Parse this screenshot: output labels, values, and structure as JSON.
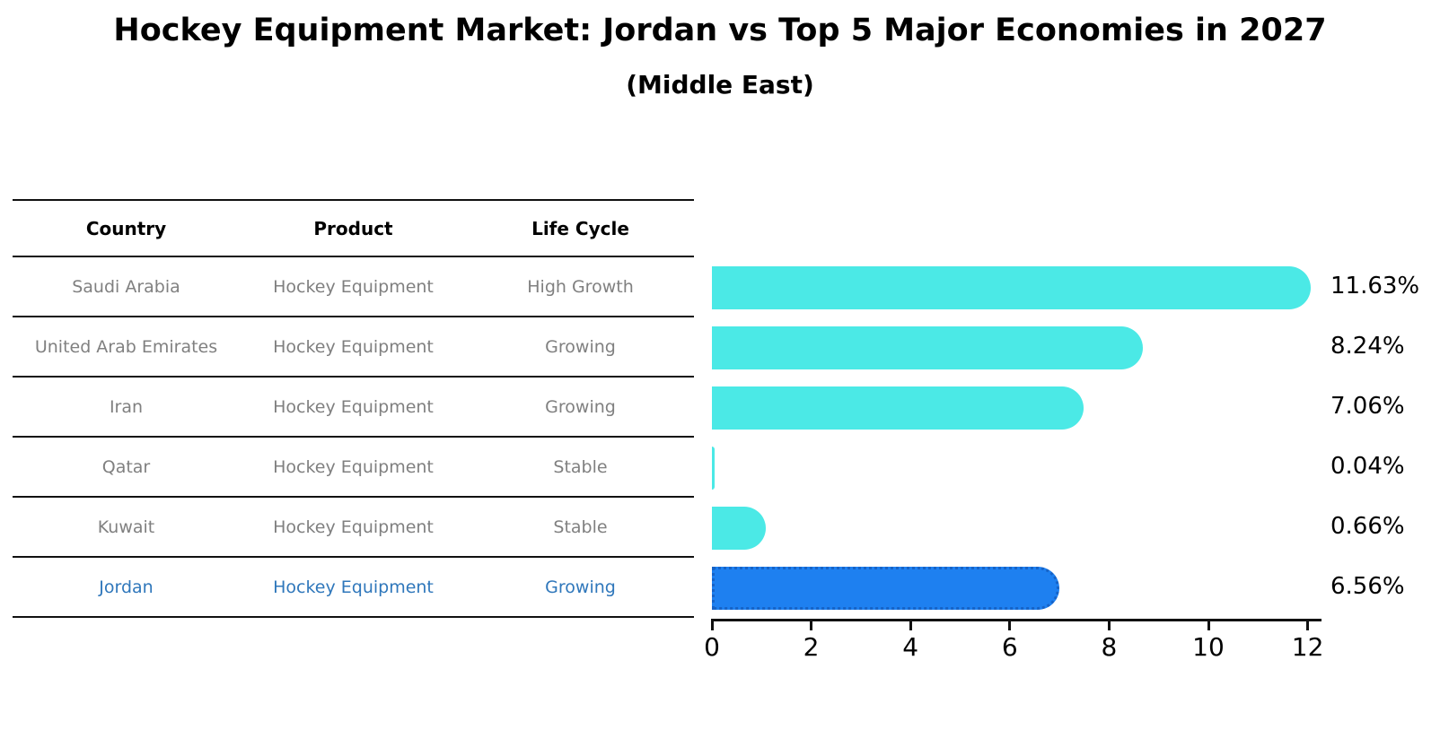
{
  "title": "Hockey Equipment Market: Jordan vs Top 5 Major Economies in 2027",
  "subtitle": "(Middle East)",
  "table": {
    "headers": [
      "Country",
      "Product",
      "Life Cycle"
    ],
    "rows": [
      {
        "country": "Saudi Arabia",
        "product": "Hockey Equipment",
        "life_cycle": "High Growth",
        "highlight": false
      },
      {
        "country": "United Arab Emirates",
        "product": "Hockey Equipment",
        "life_cycle": "Growing",
        "highlight": false
      },
      {
        "country": "Iran",
        "product": "Hockey Equipment",
        "life_cycle": "Growing",
        "highlight": false
      },
      {
        "country": "Qatar",
        "product": "Hockey Equipment",
        "life_cycle": "Stable",
        "highlight": false
      },
      {
        "country": "Kuwait",
        "product": "Hockey Equipment",
        "life_cycle": "Stable",
        "highlight": false
      },
      {
        "country": "Jordan",
        "product": "Hockey Equipment",
        "life_cycle": "Growing",
        "highlight": true
      }
    ]
  },
  "chart_data": {
    "type": "bar",
    "orientation": "horizontal",
    "title": "Hockey Equipment Market: Jordan vs Top 5 Major Economies in 2027 (Middle East)",
    "categories": [
      "Saudi Arabia",
      "United Arab Emirates",
      "Iran",
      "Qatar",
      "Kuwait",
      "Jordan"
    ],
    "values": [
      11.63,
      8.24,
      7.06,
      0.04,
      0.66,
      6.56
    ],
    "value_labels": [
      "11.63%",
      "8.24%",
      "7.06%",
      "0.04%",
      "0.66%",
      "6.56%"
    ],
    "x_ticks": [
      0,
      2,
      4,
      6,
      8,
      10,
      12
    ],
    "xlim": [
      0,
      12.3
    ],
    "xlabel": "",
    "ylabel": "",
    "grid": false,
    "legend": false,
    "highlight_index": 5
  },
  "colors": {
    "bar": "#4be9e6",
    "highlight_bar": "#1e80f0",
    "highlight_border": "#1663c7",
    "highlight_text": "#2f77bb",
    "row_text": "#808080",
    "axis": "#111111"
  }
}
